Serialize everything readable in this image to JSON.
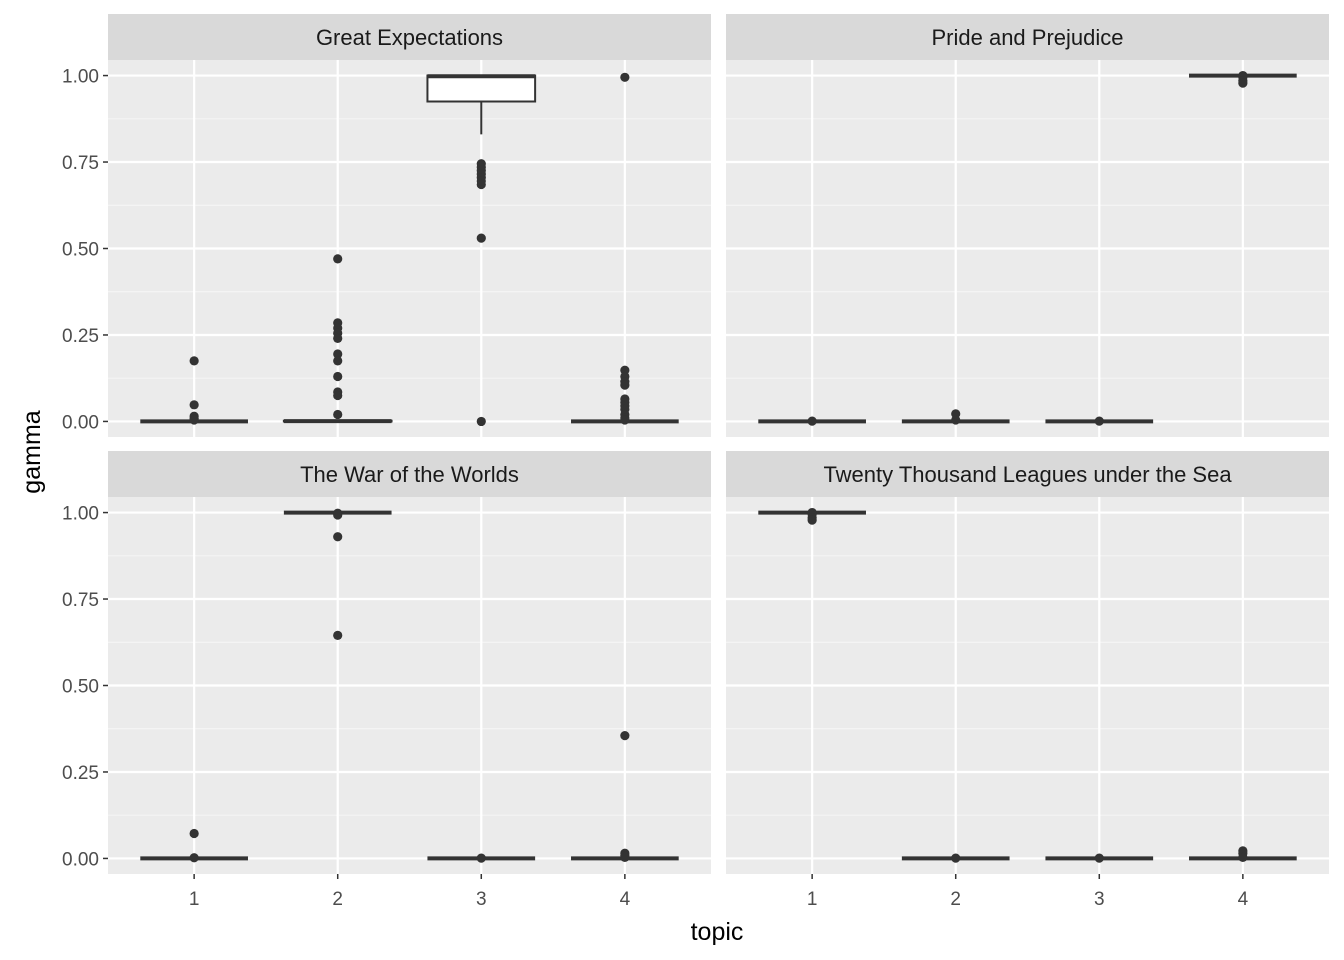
{
  "chart_data": {
    "type": "boxplot",
    "xlabel": "topic",
    "ylabel": "gamma",
    "categories": [
      "1",
      "2",
      "3",
      "4"
    ],
    "y_ticks": [
      "0.00",
      "0.25",
      "0.50",
      "0.75",
      "1.00"
    ],
    "y_tick_values": [
      0,
      0.25,
      0.5,
      0.75,
      1.0
    ],
    "ylim": [
      -0.045,
      1.045
    ],
    "grid": true,
    "facets": [
      {
        "title": "Great Expectations",
        "boxes": [
          {
            "topic": "1",
            "q1": 0,
            "median": 0,
            "q3": 0,
            "lower": 0,
            "upper": 0,
            "outliers": [
              0.175,
              0.048,
              0.015,
              0.008,
              0.004
            ]
          },
          {
            "topic": "2",
            "q1": 0,
            "median": 0.001,
            "q3": 0.002,
            "lower": 0,
            "upper": 0.004,
            "outliers": [
              0.47,
              0.285,
              0.27,
              0.255,
              0.24,
              0.195,
              0.175,
              0.13,
              0.085,
              0.075,
              0.02
            ]
          },
          {
            "topic": "3",
            "q1": 0.925,
            "median": 0.998,
            "q3": 1.0,
            "lower": 0.83,
            "upper": 1.0,
            "outliers": [
              0.745,
              0.735,
              0.725,
              0.715,
              0.705,
              0.695,
              0.685,
              0.53,
              0.0
            ]
          },
          {
            "topic": "4",
            "q1": 0,
            "median": 0,
            "q3": 0,
            "lower": 0,
            "upper": 0.002,
            "outliers": [
              0.995,
              0.148,
              0.13,
              0.115,
              0.105,
              0.065,
              0.055,
              0.045,
              0.035,
              0.02,
              0.01,
              0.004
            ]
          }
        ]
      },
      {
        "title": "Pride and Prejudice",
        "boxes": [
          {
            "topic": "1",
            "q1": 0,
            "median": 0,
            "q3": 0,
            "lower": 0,
            "upper": 0,
            "outliers": [
              0.001
            ]
          },
          {
            "topic": "2",
            "q1": 0,
            "median": 0,
            "q3": 0,
            "lower": 0,
            "upper": 0,
            "outliers": [
              0.022,
              0.004
            ]
          },
          {
            "topic": "3",
            "q1": 0,
            "median": 0,
            "q3": 0,
            "lower": 0,
            "upper": 0,
            "outliers": [
              0.001
            ]
          },
          {
            "topic": "4",
            "q1": 1.0,
            "median": 1.0,
            "q3": 1.0,
            "lower": 1.0,
            "upper": 1.0,
            "outliers": [
              1.0,
              0.995,
              0.985,
              0.978
            ]
          }
        ]
      },
      {
        "title": "The War of the Worlds",
        "boxes": [
          {
            "topic": "1",
            "q1": 0,
            "median": 0,
            "q3": 0,
            "lower": 0,
            "upper": 0,
            "outliers": [
              0.072,
              0.002
            ]
          },
          {
            "topic": "2",
            "q1": 1.0,
            "median": 1.0,
            "q3": 1.0,
            "lower": 1.0,
            "upper": 1.0,
            "outliers": [
              0.998,
              0.993,
              0.93,
              0.645
            ]
          },
          {
            "topic": "3",
            "q1": 0,
            "median": 0,
            "q3": 0,
            "lower": 0,
            "upper": 0,
            "outliers": [
              0.001
            ]
          },
          {
            "topic": "4",
            "q1": 0,
            "median": 0,
            "q3": 0,
            "lower": 0,
            "upper": 0,
            "outliers": [
              0.355,
              0.015,
              0.008,
              0.003
            ]
          }
        ]
      },
      {
        "title": "Twenty Thousand Leagues under the Sea",
        "boxes": [
          {
            "topic": "1",
            "q1": 1.0,
            "median": 1.0,
            "q3": 1.0,
            "lower": 1.0,
            "upper": 1.0,
            "outliers": [
              1.0,
              0.995,
              0.985,
              0.978
            ]
          },
          {
            "topic": "2",
            "q1": 0,
            "median": 0,
            "q3": 0,
            "lower": 0,
            "upper": 0,
            "outliers": [
              0.001
            ]
          },
          {
            "topic": "3",
            "q1": 0,
            "median": 0,
            "q3": 0,
            "lower": 0,
            "upper": 0,
            "outliers": [
              0.001
            ]
          },
          {
            "topic": "4",
            "q1": 0,
            "median": 0,
            "q3": 0,
            "lower": 0,
            "upper": 0,
            "outliers": [
              0.022,
              0.015,
              0.003
            ]
          }
        ]
      }
    ]
  },
  "colors": {
    "panel_background": "#ebebeb",
    "strip_background": "#d9d9d9",
    "grid_major": "#ffffff",
    "grid_minor": "#f5f5f5",
    "box_line": "#333333",
    "box_fill": "#ffffff",
    "outlier": "#333333",
    "tick_text": "#4d4d4d",
    "title_text": "#000000"
  }
}
